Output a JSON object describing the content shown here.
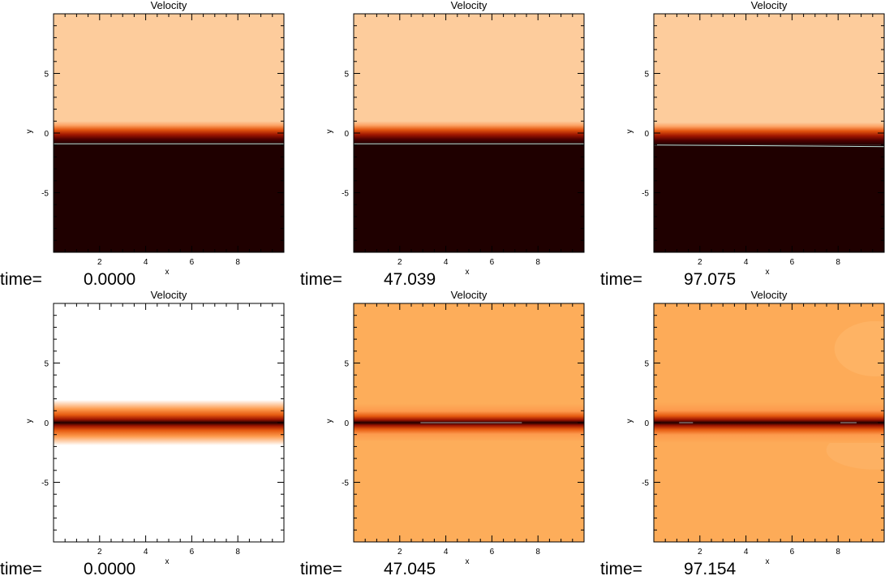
{
  "figure": {
    "panel_title": "Velocity",
    "xlabel": "x",
    "ylabel": "y",
    "time_label": "time=",
    "x_ticks": [
      "2",
      "4",
      "6",
      "8"
    ],
    "y_ticks": [
      "5",
      "0",
      "-5"
    ]
  },
  "chart_data": [
    {
      "type": "heatmap",
      "title": "Velocity",
      "xlabel": "x",
      "ylabel": "y",
      "xlim": [
        0,
        10
      ],
      "ylim": [
        -10,
        10
      ],
      "time": "0.0000",
      "colormap": "hot",
      "upper_color": "#fdcc9c",
      "lower_color": "#1f0000",
      "interface_y": -0.9,
      "layer_height": 1.9,
      "band": "step"
    },
    {
      "type": "heatmap",
      "title": "Velocity",
      "xlabel": "x",
      "ylabel": "y",
      "xlim": [
        0,
        10
      ],
      "ylim": [
        -10,
        10
      ],
      "time": "47.039",
      "colormap": "hot",
      "upper_color": "#fdcc9c",
      "lower_color": "#1f0000",
      "interface_y": -0.9,
      "layer_height": 1.9,
      "band": "step"
    },
    {
      "type": "heatmap",
      "title": "Velocity",
      "xlabel": "x",
      "ylabel": "y",
      "xlim": [
        0,
        10
      ],
      "ylim": [
        -10,
        10
      ],
      "time": "97.075",
      "colormap": "hot",
      "upper_color": "#fdcc9c",
      "lower_color": "#1f0000",
      "interface_y": -1.0,
      "layer_height": 1.9,
      "band": "step"
    },
    {
      "type": "heatmap",
      "title": "Velocity",
      "xlabel": "x",
      "ylabel": "y",
      "xlim": [
        0,
        10
      ],
      "ylim": [
        -10,
        10
      ],
      "time": "0.0000",
      "colormap": "hot",
      "background": "#ffffff",
      "center_y": 0,
      "band_halfwidth": 1.9,
      "band": "shear"
    },
    {
      "type": "heatmap",
      "title": "Velocity",
      "xlabel": "x",
      "ylabel": "y",
      "xlim": [
        0,
        10
      ],
      "ylim": [
        -10,
        10
      ],
      "time": "47.045",
      "colormap": "hot",
      "background": "#fdad5a",
      "center_y": 0,
      "band_halfwidth": 1.6,
      "band": "shear"
    },
    {
      "type": "heatmap",
      "title": "Velocity",
      "xlabel": "x",
      "ylabel": "y",
      "xlim": [
        0,
        10
      ],
      "ylim": [
        -10,
        10
      ],
      "time": "97.154",
      "colormap": "hot",
      "background": "#fdab58",
      "center_y": 0,
      "band_halfwidth": 1.7,
      "band": "shear"
    }
  ]
}
